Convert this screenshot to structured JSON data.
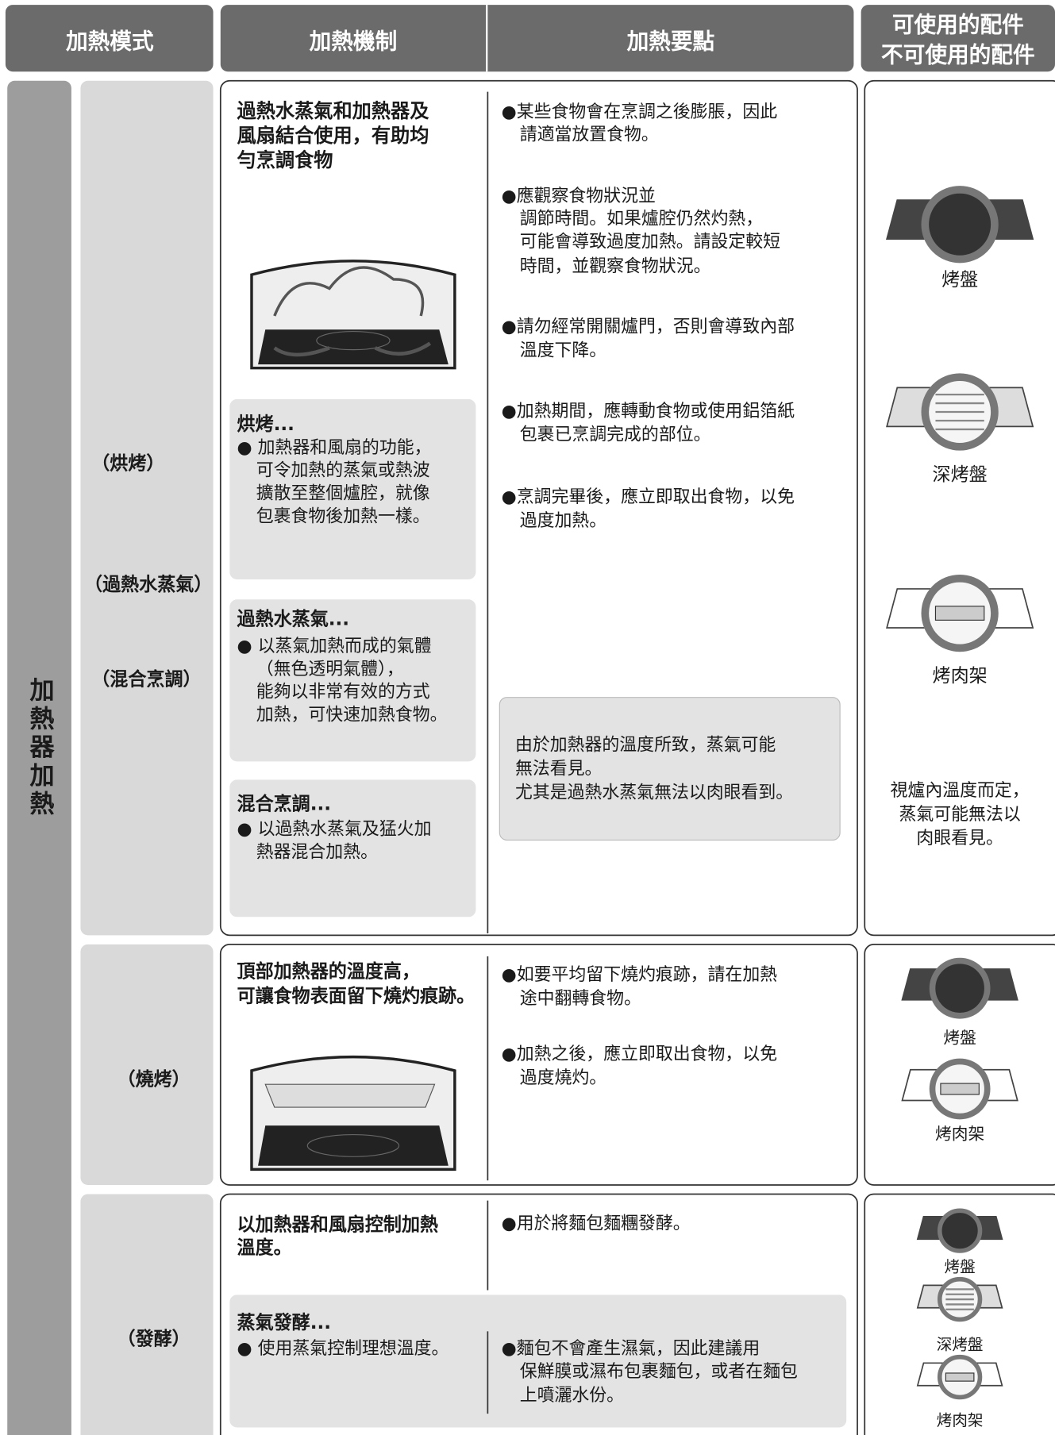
{
  "header": {
    "mode": "加熱模式",
    "mechanism": "加熱機制",
    "points": "加熱要點",
    "accessories": [
      "可使用的配件",
      "不可使用的配件"
    ]
  },
  "side_label": "加熱器加熱",
  "rows": [
    {
      "modes": [
        "（烘烤）",
        "（過熱水蒸氣）",
        "（混合烹調）"
      ],
      "mechanism": [
        "過熱水蒸氣和加熱器及",
        "風扇結合使用，有助均",
        "勻烹調食物"
      ],
      "boxes": [
        {
          "title": "烘烤...",
          "lines": [
            "● 加熱器和風扇的功能，",
            "可令加熱的蒸氣或熱波",
            "擴散至整個爐腔，就像",
            "包裹食物後加熱一樣。"
          ]
        },
        {
          "title": "過熱水蒸氣...",
          "lines": [
            "● 以蒸氣加熱而成的氣體",
            "（無色透明氣體），",
            "能夠以非常有效的方式",
            "加熱，可快速加熱食物。"
          ]
        },
        {
          "title": "混合烹調...",
          "lines": [
            "● 以過熱水蒸氣及猛火加",
            "熱器混合加熱。"
          ]
        }
      ],
      "points": [
        [
          "●某些食物會在烹調之後膨脹，因此",
          "請適當放置食物。"
        ],
        [
          "●應觀察食物狀況並",
          "調節時間。如果爐腔仍然灼熱，",
          "可能會導致過度加熱。請設定較短",
          "時間，並觀察食物狀況。"
        ],
        [
          "●請勿經常開關爐門，否則會導致內部",
          "溫度下降。"
        ],
        [
          "●加熱期間，應轉動食物或使用鋁箔紙",
          "包裹已烹調完成的部位。"
        ],
        [
          "●烹調完畢後，應立即取出食物，以免",
          "過度加熱。"
        ]
      ],
      "note": [
        "由於加熱器的溫度所致，蒸氣可能",
        "無法看見。",
        "尤其是過熱水蒸氣無法以肉眼看到。"
      ],
      "accessories": [
        "烤盤",
        "深烤盤",
        "烤肉架"
      ],
      "accessory_note": [
        "視爐內溫度而定，",
        "蒸氣可能無法以",
        "肉眼看見。"
      ]
    },
    {
      "modes": [
        "（燒烤）"
      ],
      "mechanism": [
        "頂部加熱器的溫度高，",
        "可讓食物表面留下燒灼痕跡。"
      ],
      "points": [
        [
          "●如要平均留下燒灼痕跡，請在加熱",
          "途中翻轉食物。"
        ],
        [
          "●加熱之後，應立即取出食物，以免",
          "過度燒灼。"
        ]
      ],
      "accessories": [
        "烤盤",
        "烤肉架"
      ]
    },
    {
      "modes": [
        "（發酵）"
      ],
      "mechanism": [
        "以加熱器和風扇控制加熱",
        "溫度。"
      ],
      "points": [
        [
          "●用於將麵包麵糰發酵。"
        ]
      ],
      "box": {
        "title": "蒸氣發酵...",
        "line": "● 使用蒸氣控制理想溫度。",
        "points": [
          "●麵包不會產生濕氣，因此建議用",
          "保鮮膜或濕布包裹麵包，或者在麵包",
          "上噴灑水份。"
        ]
      },
      "accessories": [
        "烤盤",
        "深烤盤",
        "烤肉架"
      ]
    }
  ]
}
